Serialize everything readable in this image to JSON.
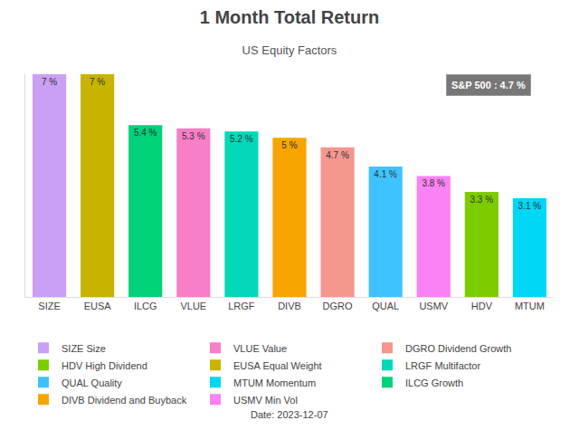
{
  "chart_data": {
    "type": "bar",
    "title": "1 Month Total Return",
    "subtitle": "US Equity Factors",
    "categories": [
      "SIZE",
      "EUSA",
      "ILCG",
      "VLUE",
      "LRGF",
      "DIVB",
      "DGRO",
      "QUAL",
      "USMV",
      "HDV",
      "MTUM"
    ],
    "series": [
      {
        "name": "SIZE Size",
        "color": "#c9a0f5",
        "values": [
          7,
          null,
          null,
          null,
          null,
          null,
          null,
          null,
          null,
          null,
          null
        ],
        "value_labels": [
          "7 %",
          null,
          null,
          null,
          null,
          null,
          null,
          null,
          null,
          null,
          null
        ]
      },
      {
        "name": "EUSA Equal Weight",
        "color": "#c8b400",
        "values": [
          null,
          7,
          null,
          null,
          null,
          null,
          null,
          null,
          null,
          null,
          null
        ],
        "value_labels": [
          null,
          "7 %",
          null,
          null,
          null,
          null,
          null,
          null,
          null,
          null,
          null
        ]
      },
      {
        "name": "ILCG Growth",
        "color": "#00d27a",
        "values": [
          null,
          null,
          5.4,
          null,
          null,
          null,
          null,
          null,
          null,
          null,
          null
        ],
        "value_labels": [
          null,
          null,
          "5.4 %",
          null,
          null,
          null,
          null,
          null,
          null,
          null,
          null
        ]
      },
      {
        "name": "VLUE Value",
        "color": "#f77fc8",
        "values": [
          null,
          null,
          null,
          5.3,
          null,
          null,
          null,
          null,
          null,
          null,
          null
        ],
        "value_labels": [
          null,
          null,
          null,
          "5.3 %",
          null,
          null,
          null,
          null,
          null,
          null,
          null
        ]
      },
      {
        "name": "LRGF Multifactor",
        "color": "#00d8b8",
        "values": [
          null,
          null,
          null,
          null,
          5.2,
          null,
          null,
          null,
          null,
          null,
          null
        ],
        "value_labels": [
          null,
          null,
          null,
          null,
          "5.2 %",
          null,
          null,
          null,
          null,
          null,
          null
        ]
      },
      {
        "name": "DIVB Dividend and Buyback",
        "color": "#f6a500",
        "values": [
          null,
          null,
          null,
          null,
          null,
          5,
          null,
          null,
          null,
          null,
          null
        ],
        "value_labels": [
          null,
          null,
          null,
          null,
          null,
          "5 %",
          null,
          null,
          null,
          null,
          null
        ]
      },
      {
        "name": "DGRO Dividend Growth",
        "color": "#f4978e",
        "values": [
          null,
          null,
          null,
          null,
          null,
          null,
          4.7,
          null,
          null,
          null,
          null
        ],
        "value_labels": [
          null,
          null,
          null,
          null,
          null,
          null,
          "4.7 %",
          null,
          null,
          null,
          null
        ]
      },
      {
        "name": "QUAL Quality",
        "color": "#3ec3ff",
        "values": [
          null,
          null,
          null,
          null,
          null,
          null,
          null,
          4.1,
          null,
          null,
          null
        ],
        "value_labels": [
          null,
          null,
          null,
          null,
          null,
          null,
          null,
          "4.1 %",
          null,
          null,
          null
        ]
      },
      {
        "name": "USMV Min Vol",
        "color": "#fb82f4",
        "values": [
          null,
          null,
          null,
          null,
          null,
          null,
          null,
          null,
          3.8,
          null,
          null
        ],
        "value_labels": [
          null,
          null,
          null,
          null,
          null,
          null,
          null,
          null,
          "3.8 %",
          null,
          null
        ]
      },
      {
        "name": "HDV High Dividend",
        "color": "#7ccd00",
        "values": [
          null,
          null,
          null,
          null,
          null,
          null,
          null,
          null,
          null,
          3.3,
          null
        ],
        "value_labels": [
          null,
          null,
          null,
          null,
          null,
          null,
          null,
          null,
          null,
          "3.3 %",
          null
        ]
      },
      {
        "name": "MTUM Momentum",
        "color": "#00d6f5",
        "values": [
          null,
          null,
          null,
          null,
          null,
          null,
          null,
          null,
          null,
          null,
          3.1
        ],
        "value_labels": [
          null,
          null,
          null,
          null,
          null,
          null,
          null,
          null,
          null,
          null,
          "3.1 %"
        ]
      }
    ],
    "ylim": [
      0,
      7
    ],
    "yticks": [],
    "tick_labels": "x",
    "grid": false,
    "data_labels": true,
    "legend": "bottom",
    "annotations": [
      "S&P 500 : 4.7 %",
      "Date: 2023-12-07"
    ]
  }
}
